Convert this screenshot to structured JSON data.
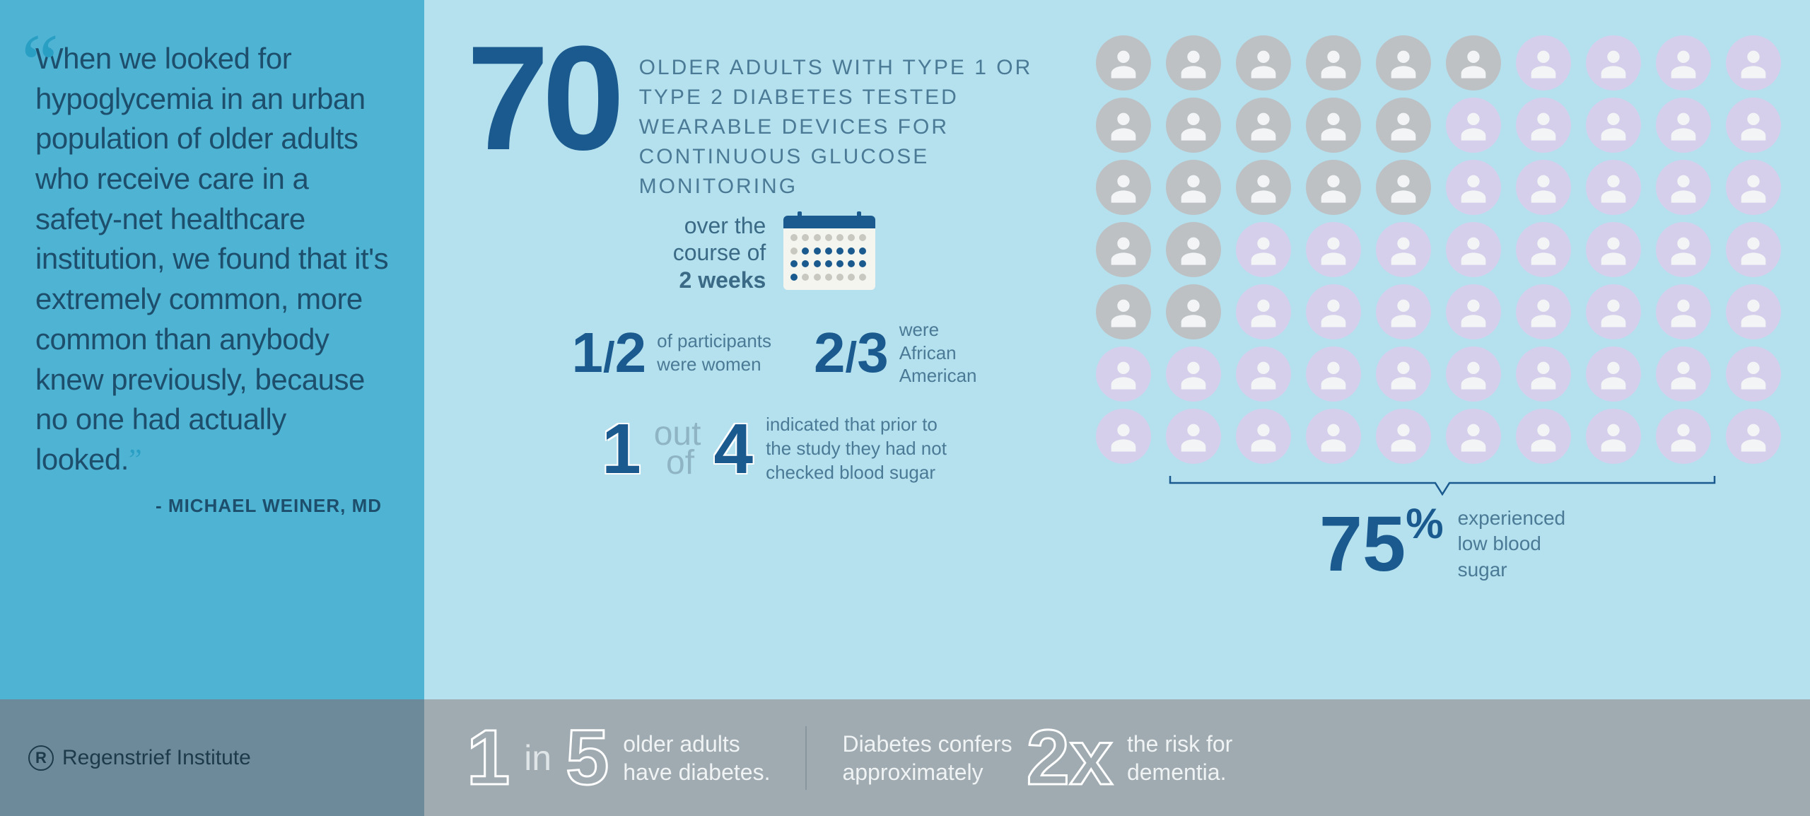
{
  "quote": {
    "text": "When we looked for hypoglycemia in an urban popula­tion of older adults who receive care in a safety-net health­care institution, we found that it's extremely common, more common than anybody knew previously, because no one had actually looked.",
    "attribution": "- MICHAEL WEINER, MD"
  },
  "stat70": {
    "number": "70",
    "desc": "OLDER ADULTS WITH TYPE 1 OR TYPE 2 DIABETES TESTED WEARABLE DEVICES FOR CONTINUOUS GLUCOSE MONITORING"
  },
  "weeks": {
    "line1": "over the",
    "line2": "course of",
    "bold": "2 weeks",
    "active_days": [
      8,
      9,
      10,
      11,
      12,
      13,
      14,
      15,
      16,
      17,
      18,
      19,
      20,
      21
    ]
  },
  "half": {
    "frac": "1/2",
    "text": "of participants were women"
  },
  "twothirds": {
    "frac": "2/3",
    "text": "were African American"
  },
  "one_out_four": {
    "n1": "1",
    "mid_top": "out",
    "mid_bot": "of",
    "n2": "4",
    "text": "indicated that prior to the study they had not checked blood sugar"
  },
  "people": {
    "total": 70,
    "cols": 10,
    "lilac_indices_from_end": 53,
    "colors": {
      "gray": "#bdc1c4",
      "lilac": "#d5cfec",
      "silhouette": "#f0f2f3"
    }
  },
  "pct": {
    "num": "75",
    "sign": "%",
    "text": "experienced low blood sugar"
  },
  "footer": {
    "logo": "Regenstrief Institute",
    "one_in_five": {
      "n1": "1",
      "mid": "in",
      "n2": "5",
      "text": "older adults have diabetes."
    },
    "two_x": {
      "pre": "Diabetes confers approximately",
      "big": "2x",
      "post": "the risk for dementia."
    }
  },
  "colors": {
    "left_bg": "#4fb3d4",
    "mid_bg": "#b5e1ef",
    "navy": "#1a5a8e",
    "slate": "#4a7a95",
    "foot_left": "#6c8a99",
    "foot_right": "#a0abb1"
  }
}
